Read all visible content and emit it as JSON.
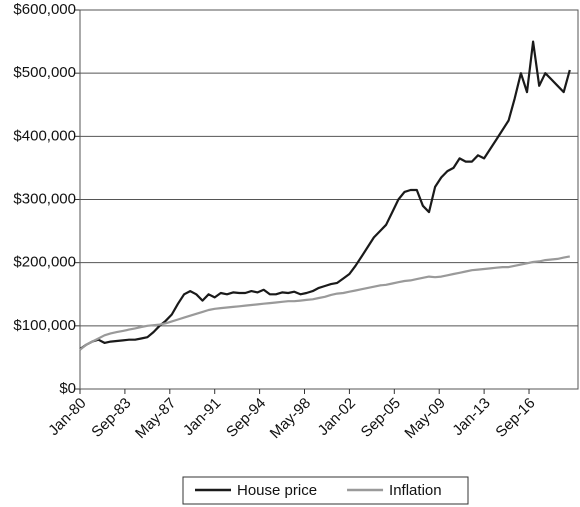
{
  "chart_data": {
    "type": "line",
    "x": [
      "Jan-80",
      "Jul-80",
      "Jan-81",
      "Jul-81",
      "Jan-82",
      "Jul-82",
      "Jan-83",
      "Jul-83",
      "Jan-84",
      "Jul-84",
      "Jan-85",
      "Jul-85",
      "Jan-86",
      "Jul-86",
      "Jan-87",
      "Jul-87",
      "Jan-88",
      "Jul-88",
      "Jan-89",
      "Jul-89",
      "Jan-90",
      "Jul-90",
      "Jan-91",
      "Jul-91",
      "Jan-92",
      "Jul-92",
      "Jan-93",
      "Jul-93",
      "Jan-94",
      "Jul-94",
      "Jan-95",
      "Jul-95",
      "Jan-96",
      "Jul-96",
      "Jan-97",
      "Jul-97",
      "Jan-98",
      "Jul-98",
      "Jan-99",
      "Jul-99",
      "Jan-00",
      "Jul-00",
      "Jan-01",
      "Jul-01",
      "Jan-02",
      "Jul-02",
      "Jan-03",
      "Jul-03",
      "Jan-04",
      "Jul-04",
      "Jan-05",
      "Jul-05",
      "Jan-06",
      "Jul-06",
      "Jan-07",
      "Jul-07",
      "Jan-08",
      "Jul-08",
      "Jan-09",
      "Jul-09",
      "Jan-10",
      "Jul-10",
      "Jan-11",
      "Jul-11",
      "Jan-12",
      "Jul-12",
      "Jan-13",
      "Jul-13",
      "Jan-14",
      "Jul-14",
      "Jan-15",
      "Jul-15",
      "Jan-16",
      "Jul-16",
      "Jan-17",
      "Jul-17",
      "Jan-18",
      "Jul-18",
      "Jan-19",
      "Jul-19",
      "Jan-20"
    ],
    "series": [
      {
        "name": "House price",
        "color": "#1a1a1a",
        "values": [
          63000,
          70000,
          75000,
          78000,
          73000,
          75000,
          76000,
          77000,
          78000,
          78000,
          80000,
          82000,
          90000,
          100000,
          108000,
          118000,
          135000,
          150000,
          155000,
          150000,
          140000,
          150000,
          145000,
          152000,
          150000,
          153000,
          152000,
          152000,
          155000,
          153000,
          157000,
          150000,
          150000,
          153000,
          152000,
          154000,
          150000,
          152000,
          155000,
          160000,
          163000,
          166000,
          168000,
          175000,
          182000,
          195000,
          210000,
          225000,
          240000,
          250000,
          260000,
          280000,
          300000,
          312000,
          315000,
          315000,
          290000,
          280000,
          320000,
          335000,
          345000,
          350000,
          365000,
          360000,
          360000,
          370000,
          365000,
          380000,
          395000,
          410000,
          425000,
          460000,
          500000,
          470000,
          550000,
          480000,
          500000,
          490000,
          480000,
          470000,
          505000
        ]
      },
      {
        "name": "Inflation",
        "color": "#9a9a9a",
        "values": [
          62000,
          70000,
          75000,
          80000,
          85000,
          88000,
          90000,
          92000,
          94000,
          96000,
          98000,
          100000,
          101000,
          102000,
          104000,
          107000,
          110000,
          113000,
          116000,
          119000,
          122000,
          125000,
          127000,
          128000,
          129000,
          130000,
          131000,
          132000,
          133000,
          134000,
          135000,
          136000,
          137000,
          138000,
          139000,
          139000,
          140000,
          141000,
          142000,
          144000,
          146000,
          149000,
          151000,
          152000,
          154000,
          156000,
          158000,
          160000,
          162000,
          164000,
          165000,
          167000,
          169000,
          171000,
          172000,
          174000,
          176000,
          178000,
          177000,
          178000,
          180000,
          182000,
          184000,
          186000,
          188000,
          189000,
          190000,
          191000,
          192000,
          193000,
          193000,
          195000,
          197000,
          199000,
          201000,
          202000,
          204000,
          205000,
          206000,
          208000,
          210000
        ]
      }
    ],
    "xlim": [
      "Jan-80",
      "Sep-20"
    ],
    "xticks": [
      "Jan-80",
      "Sep-83",
      "May-87",
      "Jan-91",
      "Sep-94",
      "May-98",
      "Jan-02",
      "Sep-05",
      "May-09",
      "Jan-13",
      "Sep-16"
    ],
    "ylim": [
      0,
      600000
    ],
    "yticks": [
      {
        "value": 0,
        "label": "$0"
      },
      {
        "value": 100000,
        "label": "$100,000"
      },
      {
        "value": 200000,
        "label": "$200,000"
      },
      {
        "value": 300000,
        "label": "$300,000"
      },
      {
        "value": 400000,
        "label": "$400,000"
      },
      {
        "value": 500000,
        "label": "$500,000"
      },
      {
        "value": 600000,
        "label": "$600,000"
      }
    ],
    "grid": true,
    "legend": "bottom"
  }
}
